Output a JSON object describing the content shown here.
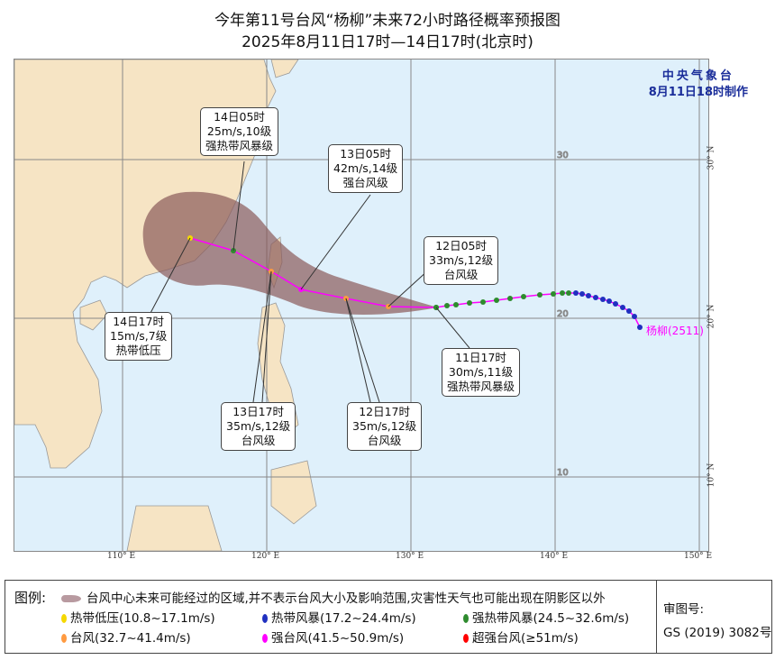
{
  "title": {
    "line1": "今年第11号台风“杨柳”未来72小时路径概率预报图",
    "line2": "2025年8月11日17时—14日17时(北京时)"
  },
  "agency": {
    "name": "中央气象台",
    "issued": "8月11日18时制作"
  },
  "map": {
    "lon_ticks": [
      "110° E",
      "120° E",
      "130° E",
      "140° E",
      "150° E"
    ],
    "lat_ticks": [
      "30° N",
      "20° N",
      "10° N"
    ],
    "grid_labels": [
      "30",
      "20",
      "10"
    ],
    "typhoon_label": "杨柳(2511)",
    "colors": {
      "land": "#f6e4c4",
      "sea": "#dff0fb",
      "track": "#ff00ff",
      "cone": "#8a5a5a",
      "td": "#f5d800",
      "ts": "#2030c0",
      "sts": "#2e8b2e",
      "ty": "#ff9a40",
      "sty": "#ff00ff",
      "superty": "#ff0000"
    }
  },
  "callouts": [
    {
      "time": "14日05时",
      "wind": "25m/s,10级",
      "level": "强热带风暴级"
    },
    {
      "time": "13日05时",
      "wind": "42m/s,14级",
      "level": "强台风级"
    },
    {
      "time": "12日05时",
      "wind": "33m/s,12级",
      "level": "台风级"
    },
    {
      "time": "14日17时",
      "wind": "15m/s,7级",
      "level": "热带低压"
    },
    {
      "time": "11日17时",
      "wind": "30m/s,11级",
      "level": "强热带风暴级"
    },
    {
      "time": "13日17时",
      "wind": "35m/s,12级",
      "level": "台风级"
    },
    {
      "time": "12日17时",
      "wind": "35m/s,12级",
      "level": "台风级"
    }
  ],
  "legend": {
    "label": "图例:",
    "cone_text": "台风中心未来可能经过的区域,并不表示台风大小及影响范围,灾害性天气也可能出现在阴影区以外",
    "items": [
      "热带低压(10.8~17.1m/s)",
      "热带风暴(17.2~24.4m/s)",
      "强热带风暴(24.5~32.6m/s)",
      "台风(32.7~41.4m/s)",
      "强台风(41.5~50.9m/s)",
      "超强台风(≥51m/s)"
    ],
    "approval_label": "审图号:",
    "approval_no": "GS (2019) 3082号"
  }
}
